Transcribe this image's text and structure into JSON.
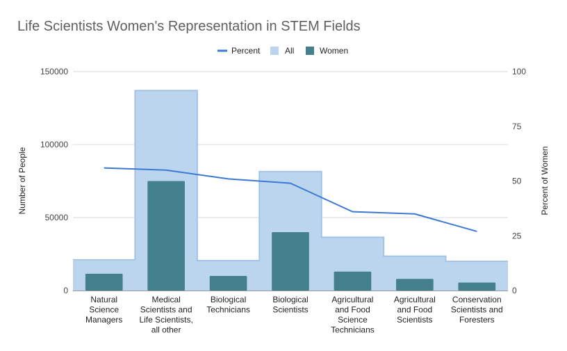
{
  "chart_data": {
    "type": "bar",
    "title": "Life Scientists Women's Representation in STEM Fields",
    "ylabel": "Number of People",
    "y2label": "Percent of Women",
    "ylim": [
      0,
      150000
    ],
    "y2lim": [
      0,
      100
    ],
    "yticks": [
      "0",
      "50000",
      "100000",
      "150000"
    ],
    "y2ticks": [
      "0",
      "25",
      "50",
      "75",
      "100"
    ],
    "legend_position": "top",
    "grid": true,
    "categories": [
      [
        "Natural",
        "Science",
        "Managers"
      ],
      [
        "Medical",
        "Scientists and",
        "Life Scientists,",
        "all other"
      ],
      [
        "Biological",
        "Technicians"
      ],
      [
        "Biological",
        "Scientists"
      ],
      [
        "Agricultural",
        "and Food",
        "Science",
        "Technicians"
      ],
      [
        "Agricultural",
        "and Food",
        "Scientists"
      ],
      [
        "Conservation",
        "Scientists and",
        "Foresters"
      ]
    ],
    "series": [
      {
        "name": "Percent",
        "type": "line",
        "axis": "right",
        "color": "#3a78d4",
        "values": [
          56,
          55,
          51,
          49,
          36,
          35,
          27
        ]
      },
      {
        "name": "All",
        "type": "area",
        "axis": "left",
        "color": "#bcd5ee",
        "stroke": "#a3c3e6",
        "values": [
          21000,
          137000,
          20500,
          81500,
          36500,
          23500,
          20000
        ]
      },
      {
        "name": "Women",
        "type": "bar",
        "axis": "left",
        "color": "#44808c",
        "values": [
          11500,
          75000,
          10000,
          40000,
          13000,
          8000,
          5500
        ]
      }
    ]
  }
}
